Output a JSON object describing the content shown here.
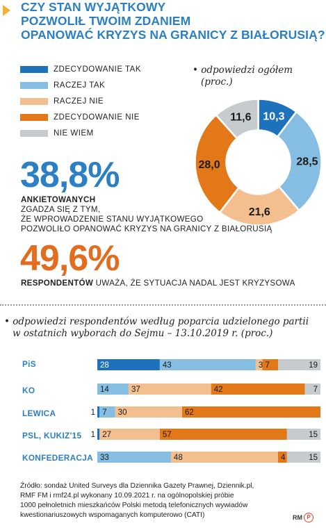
{
  "title_lines": [
    "CZY STAN WYJĄTKOWY",
    "POZWOLIŁ TWOIM ZDANIEM",
    "OPANOWAĆ KRYZYS NA GRANICY Z BIAŁORUSIĄ?"
  ],
  "colors": {
    "zdecydowanie_tak": "#1e72bb",
    "raczej_tak": "#86bde3",
    "raczej_nie": "#f4bf8f",
    "zdecydowanie_nie": "#e27817",
    "nie_wiem": "#c6cbce",
    "accent_blue": "#2b7fc4",
    "accent_orange": "#e26d1f"
  },
  "legend": [
    {
      "label": "ZDECYDOWANIE TAK",
      "color": "#1e72bb"
    },
    {
      "label": "RACZEJ TAK",
      "color": "#86bde3"
    },
    {
      "label": "RACZEJ NIE",
      "color": "#f4bf8f"
    },
    {
      "label": "ZDECYDOWANIE NIE",
      "color": "#e27817"
    },
    {
      "label": "NIE WIEM",
      "color": "#c6cbce"
    }
  ],
  "donut_note_lines": [
    "odpowiedzi ogółem",
    "(proc.)"
  ],
  "stat1": {
    "value": "38,8%",
    "bold": "ANKIETOWANYCH",
    "lines": [
      "ZGADZA SIĘ Z TYM,",
      "ŻE WPROWADZENIE STANU WYJĄTKOWEGO",
      "POZWOLIŁO OPANOWAĆ KRYZYS NA GRANICY Z BIAŁORUSIĄ"
    ]
  },
  "stat2": {
    "value": "49,6%",
    "bold": "RESPONDENTÓW",
    "rest": " UWAŻA, ŻE SYTUACJA NADAL JEST KRYZYSOWA"
  },
  "bar_note_lines": [
    "odpowiedzi respondentów według poparcia udzielonego partii",
    "w ostatnich wyborach do Sejmu – 13.10.2019 r. (proc.)"
  ],
  "source_lines": [
    "Źródło: sondaż United Surveys dla Dziennika Gazety Prawnej, Dziennik.pl,",
    "RMF FM i rmf24.pl wykonany 10.09.2021 r. na ogólnopolskiej próbie",
    "1000 pełnoletnich mieszkańców Polski metodą telefonicznych wywiadów",
    "kwestionariuszowych wspomaganych komputerowo (CATI)"
  ],
  "logo_text": "RM",
  "logo_c": "P",
  "chart_data": [
    {
      "type": "pie",
      "donut": true,
      "categories": [
        "ZDECYDOWANIE TAK",
        "RACZEJ TAK",
        "RACZEJ NIE",
        "ZDECYDOWANIE NIE",
        "NIE WIEM"
      ],
      "values": [
        10.3,
        28.5,
        21.6,
        28.0,
        11.6
      ],
      "labels": [
        "10,3",
        "28,5",
        "21,6",
        "28,0",
        "11,6"
      ],
      "colors": [
        "#1e72bb",
        "#86bde3",
        "#f4bf8f",
        "#e27817",
        "#c6cbce"
      ]
    },
    {
      "type": "bar",
      "stacked": true,
      "orientation": "horizontal",
      "categories": [
        "PiS",
        "KO",
        "LEWICA",
        "PSL, KUKIZ'15",
        "KONFEDERACJA"
      ],
      "series": [
        {
          "name": "ZDECYDOWANIE TAK",
          "color": "#1e72bb",
          "values": [
            28,
            0,
            1,
            1,
            0
          ]
        },
        {
          "name": "RACZEJ TAK",
          "color": "#86bde3",
          "values": [
            43,
            14,
            7,
            0,
            33
          ]
        },
        {
          "name": "RACZEJ NIE",
          "color": "#f4bf8f",
          "values": [
            3,
            37,
            30,
            27,
            48
          ]
        },
        {
          "name": "ZDECYDOWANIE NIE",
          "color": "#e27817",
          "values": [
            7,
            42,
            62,
            57,
            4
          ]
        },
        {
          "name": "NIE WIEM",
          "color": "#c6cbce",
          "values": [
            19,
            7,
            0,
            15,
            15
          ]
        }
      ]
    }
  ]
}
